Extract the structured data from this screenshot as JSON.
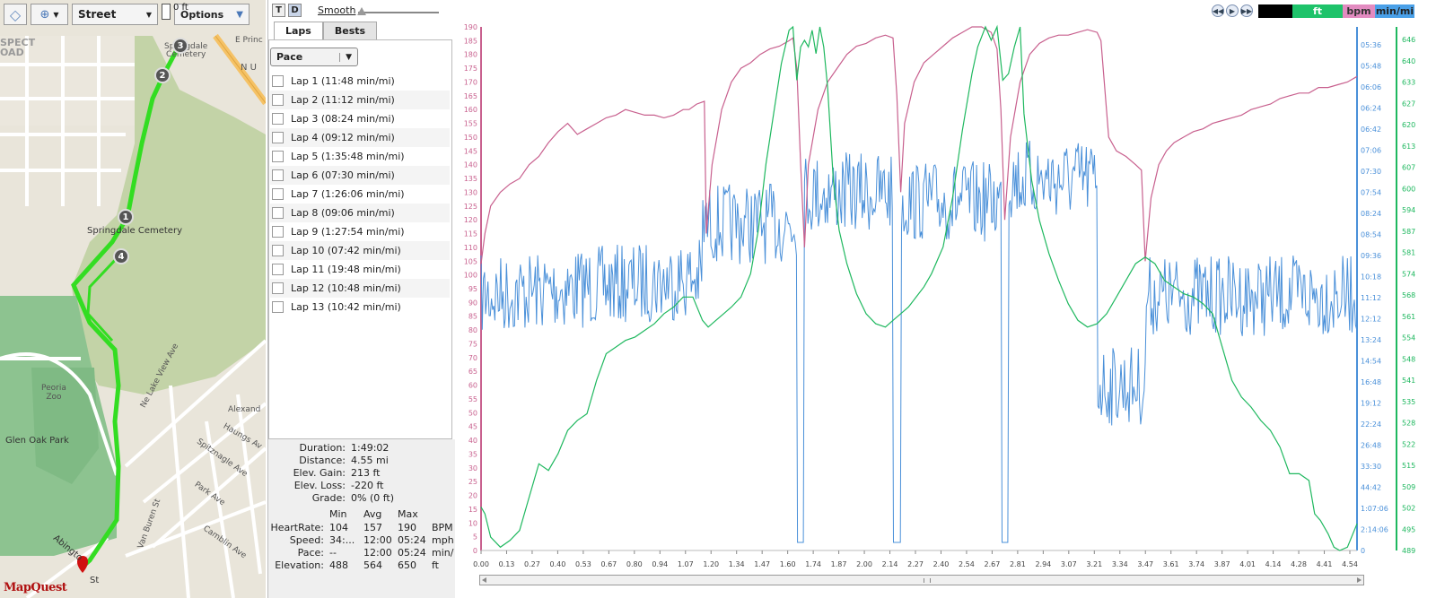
{
  "map": {
    "street_label": "Street",
    "options_label": "Options",
    "scale_label": "0 ft",
    "logo": "MapQuest",
    "labels": {
      "prospect": "SPECT\nOAD",
      "cemetery_top": "Springdale\nCemetery",
      "cemetery_mid": "Springdale Cemetery",
      "e_prince": "E Princ",
      "n_u": "N U",
      "peoria_zoo": "Peoria\nZoo",
      "glen_oak": "Glen Oak Park",
      "ne_lake_view": "Ne Lake View Ave",
      "alexandria": "Alexand",
      "haungs": "Haungs Av",
      "spitznagle": "Spitznagle Ave",
      "park": "Park Ave",
      "van_buren": "Van Buren St",
      "camblin": "Camblin Ave",
      "abington": "Abingto",
      "st": "St"
    },
    "markers": [
      "1",
      "2",
      "3",
      "4"
    ]
  },
  "middle": {
    "t_label": "T",
    "d_label": "D",
    "smooth_label": "Smooth",
    "tabs": [
      "Laps",
      "Bests"
    ],
    "select_value": "Pace",
    "laps": [
      "Lap 1 (11:48 min/mi)",
      "Lap 2 (11:12 min/mi)",
      "Lap 3 (08:24 min/mi)",
      "Lap 4 (09:12 min/mi)",
      "Lap 5 (1:35:48 min/mi)",
      "Lap 6 (07:30 min/mi)",
      "Lap 7 (1:26:06 min/mi)",
      "Lap 8 (09:06 min/mi)",
      "Lap 9 (1:27:54 min/mi)",
      "Lap 10 (07:42 min/mi)",
      "Lap 11 (19:48 min/mi)",
      "Lap 12 (10:48 min/mi)",
      "Lap 13 (10:42 min/mi)"
    ],
    "summary": {
      "duration_k": "Duration:",
      "duration_v": "1:49:02",
      "distance_k": "Distance:",
      "distance_v": "4.55 mi",
      "gain_k": "Elev. Gain:",
      "gain_v": "213 ft",
      "loss_k": "Elev. Loss:",
      "loss_v": "-220 ft",
      "grade_k": "Grade:",
      "grade_v": "0% (0 ft)"
    },
    "table": {
      "headers": [
        "Min",
        "Avg",
        "Max"
      ],
      "rows": [
        {
          "label": "HeartRate:",
          "min": "104",
          "avg": "157",
          "max": "190",
          "unit": "BPM"
        },
        {
          "label": "Speed:",
          "min": "34:...",
          "avg": "12:00",
          "max": "05:24",
          "unit": "mph"
        },
        {
          "label": "Pace:",
          "min": "--",
          "avg": "12:00",
          "max": "05:24",
          "unit": "min/"
        },
        {
          "label": "Elevation:",
          "min": "488",
          "avg": "564",
          "max": "650",
          "unit": "ft"
        }
      ]
    }
  },
  "chart_controls": {
    "units": [
      "ft",
      "bpm",
      "min/mi"
    ],
    "unit_colors": [
      "#1ec36a",
      "#e28bc0",
      "#4aa0e8"
    ]
  },
  "chart_data": {
    "type": "line",
    "xlim": [
      0,
      4.55
    ],
    "x_ticks": [
      "0.00",
      "0.13",
      "0.27",
      "0.40",
      "0.53",
      "0.67",
      "0.80",
      "0.94",
      "1.07",
      "1.20",
      "1.34",
      "1.47",
      "1.60",
      "1.74",
      "1.87",
      "2.00",
      "2.14",
      "2.27",
      "2.40",
      "2.54",
      "2.67",
      "2.81",
      "2.94",
      "3.07",
      "3.21",
      "3.34",
      "3.47",
      "3.61",
      "3.74",
      "3.87",
      "4.01",
      "4.14",
      "4.28",
      "4.41",
      "4.54"
    ],
    "hr_axis": {
      "ylim": [
        0,
        190
      ],
      "ticks": [
        0,
        5,
        10,
        15,
        20,
        25,
        30,
        35,
        40,
        45,
        50,
        55,
        60,
        65,
        70,
        75,
        80,
        85,
        90,
        95,
        100,
        105,
        110,
        115,
        120,
        125,
        130,
        135,
        140,
        145,
        150,
        155,
        160,
        165,
        170,
        175,
        180,
        185,
        190
      ],
      "color": "#c8608e"
    },
    "pace_axis": {
      "ticks": [
        "05:36",
        "05:48",
        "06:06",
        "06:24",
        "06:42",
        "07:06",
        "07:30",
        "07:54",
        "08:24",
        "08:54",
        "09:36",
        "10:18",
        "11:12",
        "12:12",
        "13:24",
        "14:54",
        "16:48",
        "19:12",
        "22:24",
        "26:48",
        "33:30",
        "44:42",
        "1:07:06",
        "2:14:06",
        "0"
      ],
      "color": "#4a90d9"
    },
    "elev_axis": {
      "ylim": [
        489,
        646
      ],
      "ticks": [
        "646",
        "640",
        "633",
        "627",
        "620",
        "613",
        "607",
        "600",
        "594",
        "587",
        "581",
        "574",
        "568",
        "561",
        "554",
        "548",
        "541",
        "535",
        "528",
        "522",
        "515",
        "509",
        "502",
        "495",
        "489"
      ],
      "color": "#1fb85f"
    },
    "series": [
      {
        "name": "bpm",
        "color": "#c8608e",
        "points": [
          [
            0.0,
            104
          ],
          [
            0.02,
            115
          ],
          [
            0.05,
            125
          ],
          [
            0.1,
            130
          ],
          [
            0.15,
            133
          ],
          [
            0.2,
            135
          ],
          [
            0.25,
            140
          ],
          [
            0.3,
            143
          ],
          [
            0.35,
            148
          ],
          [
            0.4,
            152
          ],
          [
            0.45,
            155
          ],
          [
            0.5,
            151
          ],
          [
            0.55,
            153
          ],
          [
            0.6,
            155
          ],
          [
            0.65,
            157
          ],
          [
            0.7,
            158
          ],
          [
            0.75,
            160
          ],
          [
            0.8,
            159
          ],
          [
            0.85,
            158
          ],
          [
            0.9,
            158
          ],
          [
            0.95,
            157
          ],
          [
            1.0,
            158
          ],
          [
            1.05,
            160
          ],
          [
            1.08,
            160
          ],
          [
            1.12,
            162
          ],
          [
            1.16,
            163
          ],
          [
            1.17,
            115
          ],
          [
            1.2,
            140
          ],
          [
            1.25,
            160
          ],
          [
            1.3,
            170
          ],
          [
            1.35,
            175
          ],
          [
            1.4,
            177
          ],
          [
            1.45,
            180
          ],
          [
            1.5,
            182
          ],
          [
            1.55,
            183
          ],
          [
            1.6,
            185
          ],
          [
            1.62,
            186
          ],
          [
            1.64,
            175
          ],
          [
            1.66,
            140
          ],
          [
            1.68,
            110
          ],
          [
            1.7,
            140
          ],
          [
            1.75,
            160
          ],
          [
            1.8,
            170
          ],
          [
            1.85,
            175
          ],
          [
            1.9,
            180
          ],
          [
            1.95,
            183
          ],
          [
            2.0,
            184
          ],
          [
            2.05,
            186
          ],
          [
            2.1,
            187
          ],
          [
            2.14,
            186
          ],
          [
            2.16,
            165
          ],
          [
            2.18,
            130
          ],
          [
            2.2,
            155
          ],
          [
            2.25,
            170
          ],
          [
            2.3,
            177
          ],
          [
            2.35,
            180
          ],
          [
            2.4,
            183
          ],
          [
            2.45,
            186
          ],
          [
            2.5,
            188
          ],
          [
            2.55,
            190
          ],
          [
            2.6,
            190
          ],
          [
            2.65,
            188
          ],
          [
            2.68,
            182
          ],
          [
            2.7,
            160
          ],
          [
            2.72,
            120
          ],
          [
            2.75,
            150
          ],
          [
            2.8,
            170
          ],
          [
            2.85,
            180
          ],
          [
            2.9,
            184
          ],
          [
            2.95,
            186
          ],
          [
            3.0,
            187
          ],
          [
            3.05,
            187
          ],
          [
            3.1,
            188
          ],
          [
            3.15,
            189
          ],
          [
            3.2,
            188
          ],
          [
            3.22,
            185
          ],
          [
            3.26,
            150
          ],
          [
            3.3,
            145
          ],
          [
            3.35,
            143
          ],
          [
            3.4,
            140
          ],
          [
            3.43,
            138
          ],
          [
            3.45,
            105
          ],
          [
            3.48,
            128
          ],
          [
            3.52,
            140
          ],
          [
            3.56,
            145
          ],
          [
            3.6,
            148
          ],
          [
            3.65,
            150
          ],
          [
            3.7,
            152
          ],
          [
            3.75,
            153
          ],
          [
            3.8,
            155
          ],
          [
            3.85,
            156
          ],
          [
            3.9,
            157
          ],
          [
            3.95,
            158
          ],
          [
            4.0,
            160
          ],
          [
            4.05,
            161
          ],
          [
            4.1,
            162
          ],
          [
            4.15,
            164
          ],
          [
            4.2,
            165
          ],
          [
            4.25,
            166
          ],
          [
            4.3,
            166
          ],
          [
            4.35,
            168
          ],
          [
            4.4,
            168
          ],
          [
            4.45,
            169
          ],
          [
            4.5,
            170
          ],
          [
            4.55,
            172
          ]
        ]
      },
      {
        "name": "ft",
        "color": "#1fb85f",
        "points": [
          [
            0.0,
            502
          ],
          [
            0.02,
            500
          ],
          [
            0.05,
            493
          ],
          [
            0.1,
            490
          ],
          [
            0.15,
            492
          ],
          [
            0.2,
            495
          ],
          [
            0.25,
            505
          ],
          [
            0.3,
            515
          ],
          [
            0.35,
            513
          ],
          [
            0.4,
            518
          ],
          [
            0.45,
            525
          ],
          [
            0.5,
            528
          ],
          [
            0.55,
            530
          ],
          [
            0.6,
            540
          ],
          [
            0.65,
            548
          ],
          [
            0.7,
            550
          ],
          [
            0.75,
            552
          ],
          [
            0.8,
            553
          ],
          [
            0.85,
            555
          ],
          [
            0.9,
            557
          ],
          [
            0.95,
            560
          ],
          [
            1.0,
            562
          ],
          [
            1.05,
            565
          ],
          [
            1.1,
            565
          ],
          [
            1.15,
            558
          ],
          [
            1.18,
            556
          ],
          [
            1.22,
            558
          ],
          [
            1.26,
            560
          ],
          [
            1.3,
            562
          ],
          [
            1.35,
            565
          ],
          [
            1.4,
            572
          ],
          [
            1.44,
            585
          ],
          [
            1.48,
            605
          ],
          [
            1.52,
            620
          ],
          [
            1.56,
            635
          ],
          [
            1.6,
            645
          ],
          [
            1.62,
            646
          ],
          [
            1.64,
            630
          ],
          [
            1.66,
            640
          ],
          [
            1.68,
            642
          ],
          [
            1.7,
            640
          ],
          [
            1.72,
            645
          ],
          [
            1.74,
            638
          ],
          [
            1.76,
            646
          ],
          [
            1.78,
            640
          ],
          [
            1.8,
            628
          ],
          [
            1.83,
            600
          ],
          [
            1.86,
            585
          ],
          [
            1.9,
            575
          ],
          [
            1.95,
            566
          ],
          [
            2.0,
            560
          ],
          [
            2.05,
            557
          ],
          [
            2.1,
            556
          ],
          [
            2.14,
            558
          ],
          [
            2.18,
            560
          ],
          [
            2.22,
            562
          ],
          [
            2.26,
            565
          ],
          [
            2.3,
            568
          ],
          [
            2.34,
            572
          ],
          [
            2.4,
            580
          ],
          [
            2.45,
            595
          ],
          [
            2.5,
            615
          ],
          [
            2.55,
            632
          ],
          [
            2.58,
            640
          ],
          [
            2.62,
            646
          ],
          [
            2.65,
            642
          ],
          [
            2.68,
            646
          ],
          [
            2.71,
            630
          ],
          [
            2.74,
            632
          ],
          [
            2.77,
            640
          ],
          [
            2.8,
            646
          ],
          [
            2.82,
            620
          ],
          [
            2.86,
            600
          ],
          [
            2.9,
            588
          ],
          [
            2.95,
            578
          ],
          [
            3.0,
            570
          ],
          [
            3.05,
            563
          ],
          [
            3.1,
            558
          ],
          [
            3.15,
            556
          ],
          [
            3.2,
            557
          ],
          [
            3.25,
            560
          ],
          [
            3.3,
            565
          ],
          [
            3.35,
            570
          ],
          [
            3.4,
            575
          ],
          [
            3.45,
            577
          ],
          [
            3.5,
            575
          ],
          [
            3.55,
            570
          ],
          [
            3.6,
            568
          ],
          [
            3.65,
            566
          ],
          [
            3.7,
            565
          ],
          [
            3.75,
            563
          ],
          [
            3.8,
            560
          ],
          [
            3.85,
            550
          ],
          [
            3.9,
            540
          ],
          [
            3.95,
            535
          ],
          [
            4.0,
            532
          ],
          [
            4.05,
            528
          ],
          [
            4.1,
            525
          ],
          [
            4.15,
            520
          ],
          [
            4.2,
            512
          ],
          [
            4.25,
            512
          ],
          [
            4.3,
            510
          ],
          [
            4.33,
            500
          ],
          [
            4.36,
            498
          ],
          [
            4.4,
            494
          ],
          [
            4.43,
            490
          ],
          [
            4.46,
            489
          ],
          [
            4.5,
            490
          ],
          [
            4.55,
            497
          ]
        ]
      }
    ],
    "pace_series": {
      "name": "min/mi",
      "color": "#4a90d9"
    }
  }
}
